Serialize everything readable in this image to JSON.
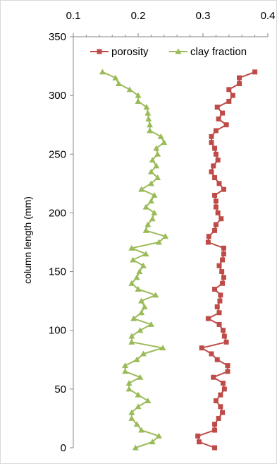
{
  "chart_data": {
    "type": "line",
    "orientation": "vertical-profile",
    "xlabel": "",
    "ylabel": "column length (mm)",
    "x_axis_position": "top",
    "xlim": [
      0.1,
      0.4
    ],
    "xticks": [
      "0.1",
      "0.2",
      "0.3",
      "0.4"
    ],
    "ylim": [
      0,
      350
    ],
    "yticks": [
      "0",
      "50",
      "100",
      "150",
      "200",
      "250",
      "300",
      "350"
    ],
    "grid": false,
    "legend_position": "top-right",
    "series": [
      {
        "name": "porosity",
        "color": "#be4b48",
        "marker": "square",
        "points": [
          {
            "x": 0.318,
            "y": 0
          },
          {
            "x": 0.294,
            "y": 5
          },
          {
            "x": 0.292,
            "y": 10
          },
          {
            "x": 0.318,
            "y": 15
          },
          {
            "x": 0.318,
            "y": 20
          },
          {
            "x": 0.324,
            "y": 25
          },
          {
            "x": 0.33,
            "y": 30
          },
          {
            "x": 0.327,
            "y": 35
          },
          {
            "x": 0.32,
            "y": 40
          },
          {
            "x": 0.327,
            "y": 45
          },
          {
            "x": 0.333,
            "y": 50
          },
          {
            "x": 0.331,
            "y": 55
          },
          {
            "x": 0.316,
            "y": 60
          },
          {
            "x": 0.338,
            "y": 65
          },
          {
            "x": 0.338,
            "y": 70
          },
          {
            "x": 0.322,
            "y": 75
          },
          {
            "x": 0.313,
            "y": 80
          },
          {
            "x": 0.298,
            "y": 85
          },
          {
            "x": 0.336,
            "y": 90
          },
          {
            "x": 0.333,
            "y": 95
          },
          {
            "x": 0.331,
            "y": 100
          },
          {
            "x": 0.325,
            "y": 105
          },
          {
            "x": 0.308,
            "y": 110
          },
          {
            "x": 0.325,
            "y": 115
          },
          {
            "x": 0.322,
            "y": 120
          },
          {
            "x": 0.326,
            "y": 125
          },
          {
            "x": 0.327,
            "y": 130
          },
          {
            "x": 0.318,
            "y": 135
          },
          {
            "x": 0.33,
            "y": 140
          },
          {
            "x": 0.332,
            "y": 145
          },
          {
            "x": 0.329,
            "y": 150
          },
          {
            "x": 0.325,
            "y": 155
          },
          {
            "x": 0.33,
            "y": 160
          },
          {
            "x": 0.332,
            "y": 165
          },
          {
            "x": 0.332,
            "y": 170
          },
          {
            "x": 0.308,
            "y": 175
          },
          {
            "x": 0.309,
            "y": 180
          },
          {
            "x": 0.318,
            "y": 185
          },
          {
            "x": 0.32,
            "y": 190
          },
          {
            "x": 0.328,
            "y": 195
          },
          {
            "x": 0.323,
            "y": 200
          },
          {
            "x": 0.32,
            "y": 205
          },
          {
            "x": 0.32,
            "y": 210
          },
          {
            "x": 0.318,
            "y": 215
          },
          {
            "x": 0.332,
            "y": 220
          },
          {
            "x": 0.325,
            "y": 225
          },
          {
            "x": 0.318,
            "y": 230
          },
          {
            "x": 0.313,
            "y": 235
          },
          {
            "x": 0.316,
            "y": 240
          },
          {
            "x": 0.323,
            "y": 245
          },
          {
            "x": 0.32,
            "y": 250
          },
          {
            "x": 0.318,
            "y": 255
          },
          {
            "x": 0.313,
            "y": 260
          },
          {
            "x": 0.313,
            "y": 265
          },
          {
            "x": 0.32,
            "y": 270
          },
          {
            "x": 0.336,
            "y": 275
          },
          {
            "x": 0.324,
            "y": 280
          },
          {
            "x": 0.33,
            "y": 285
          },
          {
            "x": 0.322,
            "y": 290
          },
          {
            "x": 0.34,
            "y": 295
          },
          {
            "x": 0.346,
            "y": 300
          },
          {
            "x": 0.34,
            "y": 305
          },
          {
            "x": 0.356,
            "y": 310
          },
          {
            "x": 0.356,
            "y": 315
          },
          {
            "x": 0.38,
            "y": 320
          }
        ]
      },
      {
        "name": "clay fraction",
        "color": "#9bbb59",
        "marker": "triangle",
        "points": [
          {
            "x": 0.196,
            "y": 0
          },
          {
            "x": 0.222,
            "y": 5
          },
          {
            "x": 0.232,
            "y": 10
          },
          {
            "x": 0.205,
            "y": 15
          },
          {
            "x": 0.198,
            "y": 20
          },
          {
            "x": 0.19,
            "y": 25
          },
          {
            "x": 0.19,
            "y": 30
          },
          {
            "x": 0.2,
            "y": 35
          },
          {
            "x": 0.215,
            "y": 40
          },
          {
            "x": 0.2,
            "y": 45
          },
          {
            "x": 0.186,
            "y": 50
          },
          {
            "x": 0.186,
            "y": 55
          },
          {
            "x": 0.203,
            "y": 60
          },
          {
            "x": 0.18,
            "y": 65
          },
          {
            "x": 0.18,
            "y": 70
          },
          {
            "x": 0.198,
            "y": 75
          },
          {
            "x": 0.208,
            "y": 80
          },
          {
            "x": 0.238,
            "y": 85
          },
          {
            "x": 0.19,
            "y": 90
          },
          {
            "x": 0.19,
            "y": 95
          },
          {
            "x": 0.203,
            "y": 100
          },
          {
            "x": 0.22,
            "y": 105
          },
          {
            "x": 0.193,
            "y": 110
          },
          {
            "x": 0.205,
            "y": 115
          },
          {
            "x": 0.21,
            "y": 120
          },
          {
            "x": 0.205,
            "y": 125
          },
          {
            "x": 0.227,
            "y": 130
          },
          {
            "x": 0.2,
            "y": 135
          },
          {
            "x": 0.19,
            "y": 140
          },
          {
            "x": 0.198,
            "y": 145
          },
          {
            "x": 0.202,
            "y": 150
          },
          {
            "x": 0.208,
            "y": 155
          },
          {
            "x": 0.192,
            "y": 160
          },
          {
            "x": 0.212,
            "y": 165
          },
          {
            "x": 0.19,
            "y": 170
          },
          {
            "x": 0.232,
            "y": 175
          },
          {
            "x": 0.242,
            "y": 180
          },
          {
            "x": 0.212,
            "y": 185
          },
          {
            "x": 0.215,
            "y": 190
          },
          {
            "x": 0.222,
            "y": 195
          },
          {
            "x": 0.225,
            "y": 200
          },
          {
            "x": 0.212,
            "y": 205
          },
          {
            "x": 0.22,
            "y": 210
          },
          {
            "x": 0.225,
            "y": 215
          },
          {
            "x": 0.205,
            "y": 220
          },
          {
            "x": 0.22,
            "y": 225
          },
          {
            "x": 0.23,
            "y": 230
          },
          {
            "x": 0.22,
            "y": 235
          },
          {
            "x": 0.228,
            "y": 240
          },
          {
            "x": 0.222,
            "y": 245
          },
          {
            "x": 0.23,
            "y": 250
          },
          {
            "x": 0.228,
            "y": 255
          },
          {
            "x": 0.24,
            "y": 260
          },
          {
            "x": 0.235,
            "y": 265
          },
          {
            "x": 0.218,
            "y": 270
          },
          {
            "x": 0.218,
            "y": 275
          },
          {
            "x": 0.216,
            "y": 280
          },
          {
            "x": 0.215,
            "y": 285
          },
          {
            "x": 0.213,
            "y": 290
          },
          {
            "x": 0.2,
            "y": 295
          },
          {
            "x": 0.2,
            "y": 300
          },
          {
            "x": 0.187,
            "y": 305
          },
          {
            "x": 0.17,
            "y": 310
          },
          {
            "x": 0.165,
            "y": 315
          },
          {
            "x": 0.145,
            "y": 320
          }
        ]
      }
    ]
  }
}
